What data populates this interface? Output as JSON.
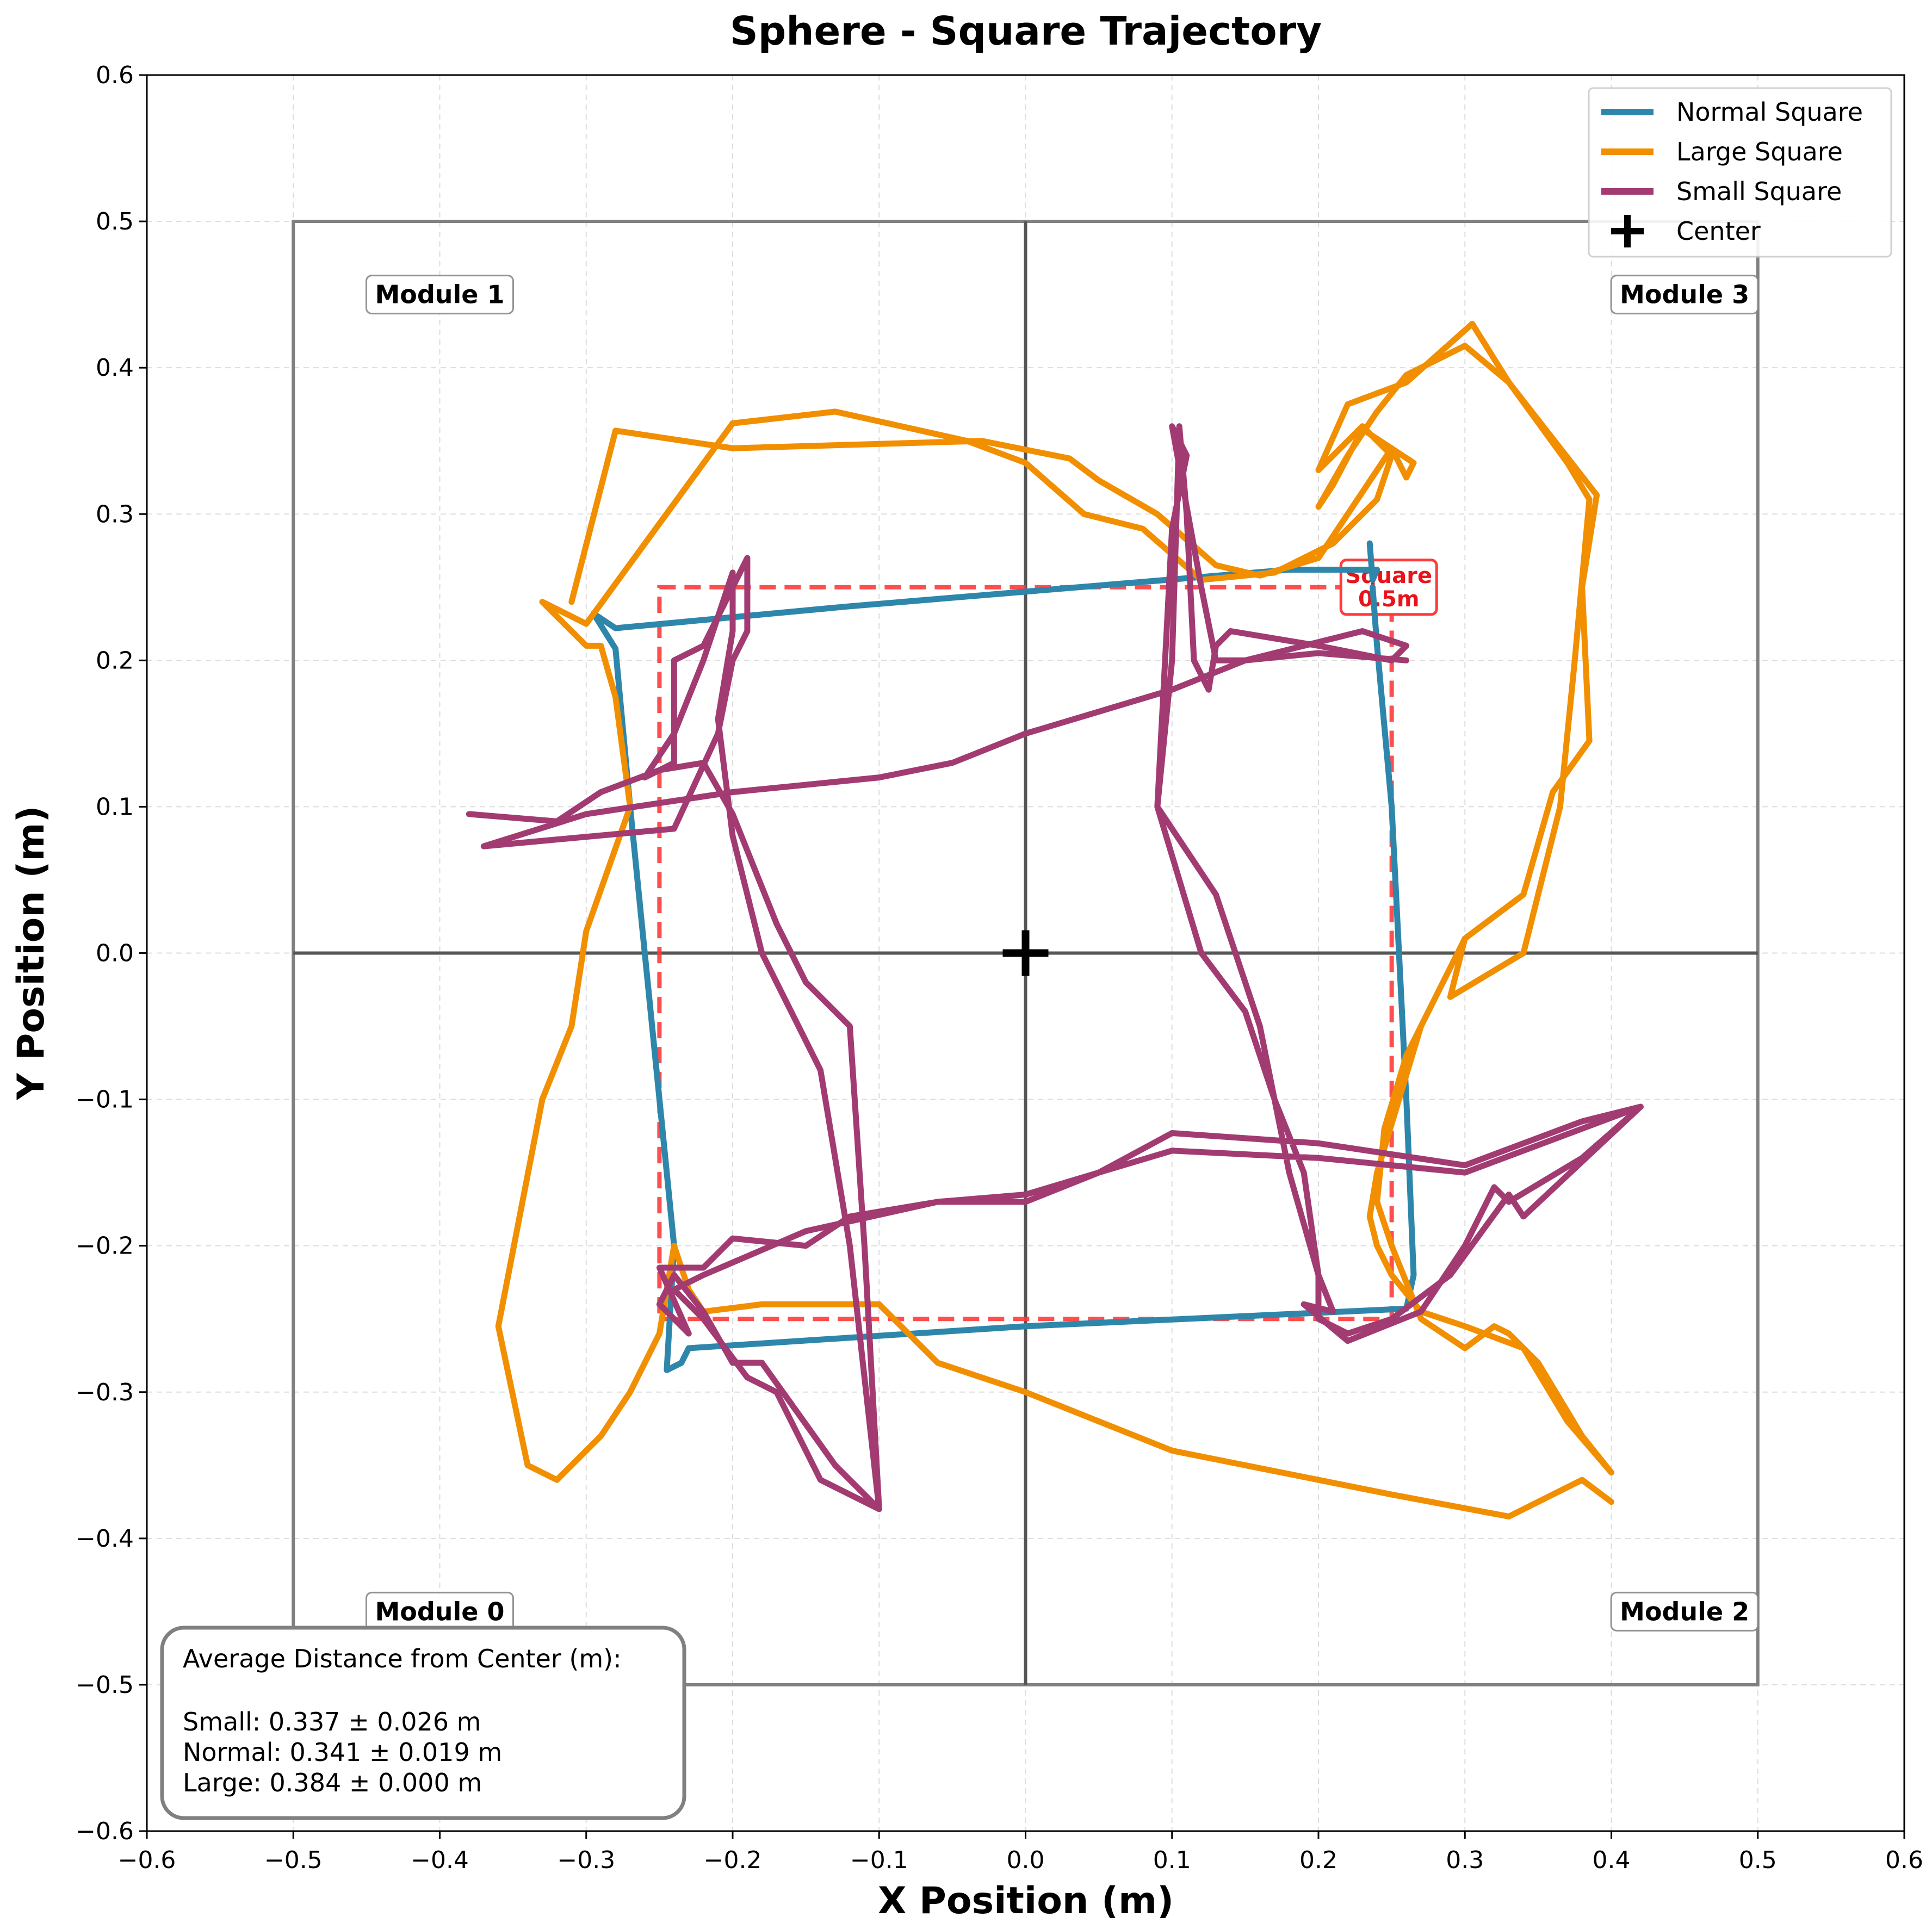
{
  "chart_data": {
    "type": "line",
    "title": "Sphere - Square Trajectory",
    "xlabel": "X Position (m)",
    "ylabel": "Y Position (m)",
    "xlim": [
      -0.6,
      0.6
    ],
    "ylim": [
      -0.6,
      0.6
    ],
    "xticks": [
      "−0.6",
      "−0.5",
      "−0.4",
      "−0.3",
      "−0.2",
      "−0.1",
      "0.0",
      "0.1",
      "0.2",
      "0.3",
      "0.4",
      "0.5",
      "0.6"
    ],
    "yticks": [
      "−0.6",
      "−0.5",
      "−0.4",
      "−0.3",
      "−0.2",
      "−0.1",
      "0.0",
      "0.1",
      "0.2",
      "0.3",
      "0.4",
      "0.5",
      "0.6"
    ],
    "grid": true,
    "legend_position": "top-right",
    "colors": {
      "normal": "#2e86ab",
      "large": "#f18f01",
      "small": "#a23b72",
      "reference": "#ff3b3b",
      "modules": "#808080"
    },
    "series": [
      {
        "name": "Normal Square",
        "color": "#2e86ab",
        "points": [
          [
            0.235,
            0.28
          ],
          [
            0.237,
            0.255
          ],
          [
            0.24,
            0.262
          ],
          [
            0.18,
            0.262
          ],
          [
            0.12,
            0.257
          ],
          [
            0.0,
            0.247
          ],
          [
            -0.12,
            0.237
          ],
          [
            -0.28,
            0.222
          ],
          [
            -0.295,
            0.232
          ],
          [
            -0.28,
            0.208
          ],
          [
            -0.27,
            0.1
          ],
          [
            -0.26,
            0.0
          ],
          [
            -0.25,
            -0.1
          ],
          [
            -0.24,
            -0.2
          ],
          [
            -0.245,
            -0.285
          ],
          [
            -0.235,
            -0.28
          ],
          [
            -0.23,
            -0.27
          ],
          [
            0.0,
            -0.255
          ],
          [
            0.26,
            -0.243
          ],
          [
            0.265,
            -0.22
          ],
          [
            0.26,
            -0.1
          ],
          [
            0.255,
            0.0
          ],
          [
            0.25,
            0.1
          ],
          [
            0.24,
            0.21
          ],
          [
            0.237,
            0.25
          ]
        ]
      },
      {
        "name": "Large Square",
        "color": "#f18f01",
        "points": [
          [
            -0.31,
            0.24
          ],
          [
            -0.28,
            0.357
          ],
          [
            -0.2,
            0.345
          ],
          [
            -0.03,
            0.35
          ],
          [
            0.03,
            0.338
          ],
          [
            0.05,
            0.323
          ],
          [
            0.09,
            0.3
          ],
          [
            0.13,
            0.265
          ],
          [
            0.16,
            0.258
          ],
          [
            0.2,
            0.27
          ],
          [
            0.22,
            0.3
          ],
          [
            0.25,
            0.345
          ],
          [
            0.26,
            0.325
          ],
          [
            0.265,
            0.335
          ],
          [
            0.23,
            0.358
          ],
          [
            0.21,
            0.32
          ],
          [
            0.2,
            0.305
          ],
          [
            0.22,
            0.34
          ],
          [
            0.24,
            0.37
          ],
          [
            0.26,
            0.395
          ],
          [
            0.3,
            0.415
          ],
          [
            0.33,
            0.39
          ],
          [
            0.37,
            0.335
          ],
          [
            0.385,
            0.31
          ],
          [
            0.375,
            0.2
          ],
          [
            0.365,
            0.1
          ],
          [
            0.34,
            0.0
          ],
          [
            0.29,
            -0.03
          ],
          [
            0.3,
            0.01
          ],
          [
            0.26,
            -0.07
          ],
          [
            0.245,
            -0.12
          ],
          [
            0.24,
            -0.17
          ],
          [
            0.25,
            -0.2
          ],
          [
            0.27,
            -0.25
          ],
          [
            0.3,
            -0.27
          ],
          [
            0.32,
            -0.255
          ],
          [
            0.33,
            -0.26
          ],
          [
            0.35,
            -0.28
          ],
          [
            0.38,
            -0.33
          ],
          [
            0.4,
            -0.355
          ],
          [
            0.37,
            -0.32
          ],
          [
            0.34,
            -0.27
          ],
          [
            0.3,
            -0.255
          ],
          [
            0.27,
            -0.245
          ],
          [
            0.25,
            -0.22
          ],
          [
            0.24,
            -0.2
          ],
          [
            0.235,
            -0.18
          ],
          [
            0.24,
            -0.15
          ],
          [
            0.255,
            -0.1
          ],
          [
            0.27,
            -0.05
          ],
          [
            0.3,
            0.01
          ],
          [
            0.34,
            0.04
          ],
          [
            0.36,
            0.11
          ],
          [
            0.385,
            0.145
          ],
          [
            0.38,
            0.25
          ],
          [
            0.39,
            0.313
          ],
          [
            0.33,
            0.39
          ],
          [
            0.305,
            0.43
          ],
          [
            0.26,
            0.39
          ],
          [
            0.22,
            0.375
          ],
          [
            0.2,
            0.33
          ],
          [
            0.23,
            0.36
          ],
          [
            0.25,
            0.34
          ],
          [
            0.24,
            0.31
          ],
          [
            0.21,
            0.28
          ],
          [
            0.17,
            0.26
          ],
          [
            0.12,
            0.255
          ],
          [
            0.08,
            0.29
          ],
          [
            0.04,
            0.3
          ],
          [
            0.0,
            0.335
          ],
          [
            -0.04,
            0.35
          ],
          [
            -0.13,
            0.37
          ],
          [
            -0.2,
            0.362
          ],
          [
            -0.3,
            0.225
          ],
          [
            -0.33,
            0.24
          ],
          [
            -0.3,
            0.21
          ],
          [
            -0.29,
            0.21
          ],
          [
            -0.28,
            0.175
          ],
          [
            -0.27,
            0.1
          ],
          [
            -0.3,
            0.015
          ],
          [
            -0.31,
            -0.05
          ],
          [
            -0.33,
            -0.1
          ],
          [
            -0.36,
            -0.255
          ],
          [
            -0.34,
            -0.35
          ],
          [
            -0.32,
            -0.36
          ],
          [
            -0.29,
            -0.33
          ],
          [
            -0.27,
            -0.3
          ],
          [
            -0.25,
            -0.26
          ],
          [
            -0.24,
            -0.2
          ],
          [
            -0.23,
            -0.23
          ],
          [
            -0.22,
            -0.245
          ],
          [
            -0.18,
            -0.24
          ],
          [
            -0.1,
            -0.24
          ],
          [
            -0.06,
            -0.28
          ],
          [
            0.0,
            -0.3
          ],
          [
            0.05,
            -0.32
          ],
          [
            0.1,
            -0.34
          ],
          [
            0.15,
            -0.35
          ],
          [
            0.25,
            -0.37
          ],
          [
            0.33,
            -0.385
          ],
          [
            0.38,
            -0.36
          ],
          [
            0.4,
            -0.375
          ]
        ]
      },
      {
        "name": "Small Square",
        "color": "#a23b72",
        "points": [
          [
            -0.38,
            0.095
          ],
          [
            -0.32,
            0.09
          ],
          [
            -0.29,
            0.11
          ],
          [
            -0.25,
            0.125
          ],
          [
            -0.22,
            0.13
          ],
          [
            -0.2,
            0.095
          ],
          [
            -0.17,
            0.02
          ],
          [
            -0.15,
            -0.02
          ],
          [
            -0.12,
            -0.05
          ],
          [
            -0.11,
            -0.2
          ],
          [
            -0.1,
            -0.38
          ],
          [
            -0.13,
            -0.35
          ],
          [
            -0.18,
            -0.28
          ],
          [
            -0.2,
            -0.28
          ],
          [
            -0.22,
            -0.245
          ],
          [
            -0.24,
            -0.22
          ],
          [
            -0.25,
            -0.24
          ],
          [
            -0.23,
            -0.26
          ],
          [
            -0.25,
            -0.215
          ],
          [
            -0.22,
            -0.215
          ],
          [
            -0.2,
            -0.195
          ],
          [
            -0.15,
            -0.2
          ],
          [
            -0.12,
            -0.18
          ],
          [
            -0.06,
            -0.17
          ],
          [
            0.0,
            -0.165
          ],
          [
            0.05,
            -0.15
          ],
          [
            0.1,
            -0.123
          ],
          [
            0.2,
            -0.13
          ],
          [
            0.3,
            -0.145
          ],
          [
            0.38,
            -0.115
          ],
          [
            0.42,
            -0.105
          ],
          [
            0.38,
            -0.14
          ],
          [
            0.33,
            -0.17
          ],
          [
            0.32,
            -0.16
          ],
          [
            0.3,
            -0.2
          ],
          [
            0.27,
            -0.245
          ],
          [
            0.22,
            -0.265
          ],
          [
            0.19,
            -0.24
          ],
          [
            0.21,
            -0.245
          ],
          [
            0.2,
            -0.22
          ],
          [
            0.18,
            -0.15
          ],
          [
            0.17,
            -0.1
          ],
          [
            0.16,
            -0.05
          ],
          [
            0.13,
            0.04
          ],
          [
            0.09,
            0.1
          ],
          [
            0.1,
            0.2
          ],
          [
            0.105,
            0.36
          ],
          [
            0.11,
            0.3
          ],
          [
            0.115,
            0.2
          ],
          [
            0.125,
            0.18
          ],
          [
            0.13,
            0.21
          ],
          [
            0.14,
            0.22
          ],
          [
            0.2,
            0.21
          ],
          [
            0.25,
            0.2
          ],
          [
            0.26,
            0.21
          ],
          [
            0.23,
            0.22
          ],
          [
            0.15,
            0.2
          ],
          [
            0.1,
            0.18
          ],
          [
            0.0,
            0.15
          ],
          [
            -0.05,
            0.13
          ],
          [
            -0.1,
            0.12
          ],
          [
            -0.2,
            0.11
          ],
          [
            -0.3,
            0.095
          ],
          [
            -0.37,
            0.073
          ],
          [
            -0.24,
            0.085
          ],
          [
            -0.21,
            0.15
          ],
          [
            -0.2,
            0.2
          ],
          [
            -0.19,
            0.22
          ],
          [
            -0.19,
            0.27
          ],
          [
            -0.21,
            0.23
          ],
          [
            -0.22,
            0.21
          ],
          [
            -0.24,
            0.2
          ],
          [
            -0.24,
            0.13
          ],
          [
            -0.26,
            0.12
          ],
          [
            -0.24,
            0.15
          ],
          [
            -0.22,
            0.2
          ],
          [
            -0.2,
            0.26
          ],
          [
            -0.2,
            0.22
          ],
          [
            -0.21,
            0.16
          ],
          [
            -0.2,
            0.08
          ],
          [
            -0.18,
            0.0
          ],
          [
            -0.14,
            -0.08
          ],
          [
            -0.12,
            -0.2
          ],
          [
            -0.1,
            -0.38
          ],
          [
            -0.14,
            -0.36
          ],
          [
            -0.17,
            -0.3
          ],
          [
            -0.19,
            -0.29
          ],
          [
            -0.22,
            -0.25
          ],
          [
            -0.24,
            -0.23
          ],
          [
            -0.22,
            -0.22
          ],
          [
            -0.15,
            -0.19
          ],
          [
            -0.06,
            -0.17
          ],
          [
            0.0,
            -0.17
          ],
          [
            0.05,
            -0.15
          ],
          [
            0.1,
            -0.135
          ],
          [
            0.2,
            -0.14
          ],
          [
            0.3,
            -0.15
          ],
          [
            0.38,
            -0.12
          ],
          [
            0.42,
            -0.105
          ],
          [
            0.34,
            -0.18
          ],
          [
            0.33,
            -0.165
          ],
          [
            0.29,
            -0.22
          ],
          [
            0.25,
            -0.25
          ],
          [
            0.22,
            -0.26
          ],
          [
            0.2,
            -0.25
          ],
          [
            0.2,
            -0.22
          ],
          [
            0.19,
            -0.15
          ],
          [
            0.17,
            -0.1
          ],
          [
            0.15,
            -0.04
          ],
          [
            0.12,
            0.0
          ],
          [
            0.09,
            0.1
          ],
          [
            0.1,
            0.29
          ],
          [
            0.11,
            0.34
          ],
          [
            0.1,
            0.36
          ],
          [
            0.12,
            0.25
          ],
          [
            0.13,
            0.2
          ],
          [
            0.15,
            0.2
          ],
          [
            0.2,
            0.205
          ],
          [
            0.26,
            0.2
          ]
        ]
      }
    ],
    "center": [
      0.0,
      0.0
    ],
    "center_label": "Center",
    "reference_square": {
      "x0": -0.25,
      "y0": -0.25,
      "x1": 0.25,
      "y1": 0.25,
      "label_line1": "Square",
      "label_line2": "0.5m"
    },
    "modules": [
      {
        "name": "Module 1",
        "x": -0.4,
        "y": 0.45
      },
      {
        "name": "Module 3",
        "x": 0.45,
        "y": 0.45
      },
      {
        "name": "Module 0",
        "x": -0.4,
        "y": -0.45
      },
      {
        "name": "Module 2",
        "x": 0.45,
        "y": -0.45
      }
    ],
    "module_bounds": [
      -0.5,
      0.5
    ],
    "stats": {
      "heading": "Average Distance from Center (m):",
      "small": "Small: 0.337 ± 0.026 m",
      "normal": "Normal: 0.341 ± 0.019 m",
      "large": "Large: 0.384 ± 0.000 m"
    }
  }
}
